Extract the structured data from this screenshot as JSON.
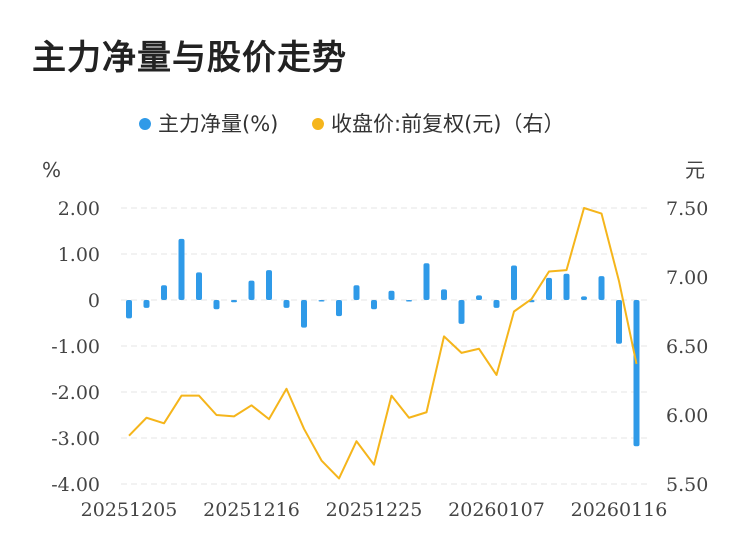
{
  "title": "主力净量与股价走势",
  "chart_data": {
    "type": "bar+line",
    "legend": [
      {
        "label": "主力净量(%)",
        "color": "#2f9ae8"
      },
      {
        "label": "收盘价:前复权(元)（右）",
        "color": "#f5b51b"
      }
    ],
    "left_unit": "%",
    "right_unit": "元",
    "left_ylim": [
      -4,
      2
    ],
    "right_ylim": [
      5.5,
      7.5
    ],
    "left_ticks": [
      "2.00",
      "1.00",
      "0",
      "-1.00",
      "-2.00",
      "-3.00",
      "-4.00"
    ],
    "right_ticks": [
      "7.50",
      "7.00",
      "6.50",
      "6.00",
      "5.50"
    ],
    "x_tick_labels": [
      {
        "index": 0,
        "label": "20251205"
      },
      {
        "index": 7,
        "label": "20251216"
      },
      {
        "index": 14,
        "label": "20251225"
      },
      {
        "index": 21,
        "label": "20260107"
      },
      {
        "index": 28,
        "label": "20260116"
      }
    ],
    "n_points": 30,
    "series": [
      {
        "name": "主力净量(%)",
        "type": "bar",
        "axis": "left",
        "values": [
          -0.4,
          -0.17,
          0.32,
          1.33,
          0.6,
          -0.2,
          -0.05,
          0.42,
          0.65,
          -0.17,
          -0.6,
          -0.03,
          -0.35,
          0.32,
          -0.2,
          0.2,
          -0.02,
          0.8,
          0.23,
          -0.52,
          0.1,
          -0.17,
          0.75,
          -0.05,
          0.48,
          0.57,
          0.08,
          0.52,
          -0.95,
          -3.18
        ]
      },
      {
        "name": "收盘价:前复权(元)（右）",
        "type": "line",
        "axis": "right",
        "values": [
          5.85,
          5.98,
          5.94,
          6.14,
          6.14,
          6.0,
          5.99,
          6.07,
          5.97,
          6.19,
          5.9,
          5.67,
          5.54,
          5.81,
          5.64,
          6.14,
          5.98,
          6.02,
          6.57,
          6.45,
          6.48,
          6.29,
          6.75,
          6.84,
          7.04,
          7.05,
          7.5,
          7.46,
          6.97,
          6.37
        ]
      }
    ],
    "grid": true
  }
}
